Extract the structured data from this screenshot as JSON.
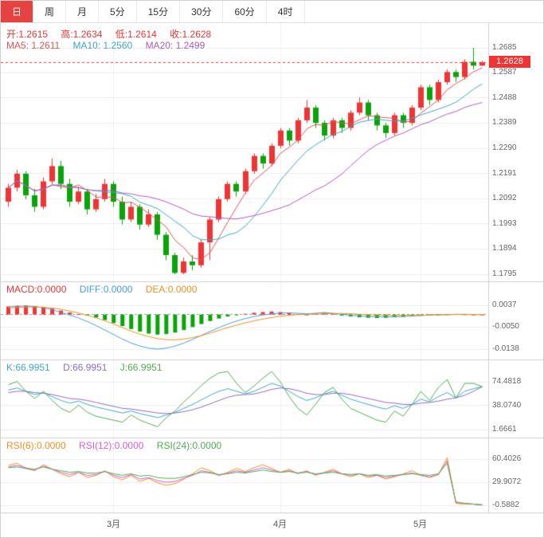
{
  "toolbar": {
    "tabs": [
      {
        "label": "日",
        "active": true
      },
      {
        "label": "周",
        "active": false
      },
      {
        "label": "月",
        "active": false
      },
      {
        "label": "5分",
        "active": false
      },
      {
        "label": "15分",
        "active": false
      },
      {
        "label": "30分",
        "active": false
      },
      {
        "label": "60分",
        "active": false
      },
      {
        "label": "4时",
        "active": false
      }
    ]
  },
  "legend": {
    "ohlc": {
      "open": "开:1.2615",
      "high": "高:1.2634",
      "low": "低:1.2614",
      "close": "收:1.2628"
    },
    "ma": [
      {
        "label": "MA5: 1.2611"
      },
      {
        "label": "MA10: 1.2560"
      },
      {
        "label": "MA20: 1.2499"
      }
    ],
    "macd": [
      {
        "label": "MACD:0.0000"
      },
      {
        "label": "DIFF:0.0000"
      },
      {
        "label": "DEA:0.0000"
      }
    ],
    "kdj": [
      {
        "label": "K:66.9951"
      },
      {
        "label": "D:66.9951"
      },
      {
        "label": "J:66.9951"
      }
    ],
    "rsi": [
      {
        "label": "RSI(6):0.0000"
      },
      {
        "label": "RSI(12):0.0000"
      },
      {
        "label": "RSI(24):0.0000"
      }
    ]
  },
  "axes": {
    "main_y": [
      "1.2685",
      "1.2587",
      "1.2488",
      "1.2389",
      "1.2290",
      "1.2191",
      "1.2092",
      "1.1993",
      "1.1894",
      "1.1795"
    ],
    "macd_y": [
      "0.0037",
      "-0.0050",
      "-0.0138"
    ],
    "kdj_y": [
      "74.4818",
      "38.0740",
      "1.6661"
    ],
    "rsi_y": [
      "60.4026",
      "29.9072",
      "-0.5882"
    ],
    "x": [
      "3月",
      "4月",
      "5月"
    ]
  },
  "price_badge": "1.2628",
  "colors": {
    "up": "#f03434",
    "down": "#08a408",
    "ma5": "#e05555",
    "ma10": "#3fa7c9",
    "ma20": "#b35abf",
    "diff": "#4a9fd8",
    "dea": "#f0921e",
    "k": "#3fa7c9",
    "d": "#8e6bc8",
    "j": "#4fae4f",
    "rsi6": "#f0921e",
    "rsi12": "#d45fd4",
    "rsi24": "#4fae4f",
    "grid": "#ececec",
    "zero_line": "#999999",
    "badge_bg": "#f03434",
    "tab_active_bg": "#e64340"
  },
  "chart_data": {
    "type": "candlestick",
    "title": "",
    "x_labels": [
      "3月",
      "4月",
      "5月"
    ],
    "month_tick_indices": [
      12,
      31,
      47
    ],
    "y_ticks_price": [
      1.2685,
      1.2587,
      1.2488,
      1.2389,
      1.229,
      1.2191,
      1.2092,
      1.1993,
      1.1894,
      1.1795
    ],
    "current_price": 1.2628,
    "ohlc_last": {
      "open": 1.2615,
      "high": 1.2634,
      "low": 1.2614,
      "close": 1.2628
    },
    "ma": {
      "windows": [
        5,
        10,
        20
      ],
      "MA5": 1.2611,
      "MA10": 1.256,
      "MA20": 1.2499
    },
    "candles": [
      [
        1.208,
        1.215,
        1.206,
        1.2135
      ],
      [
        1.2135,
        1.2205,
        1.212,
        1.219
      ],
      [
        1.219,
        1.22,
        1.209,
        1.2105
      ],
      [
        1.2105,
        1.213,
        1.204,
        1.206
      ],
      [
        1.206,
        1.2175,
        1.205,
        1.216
      ],
      [
        1.216,
        1.225,
        1.215,
        1.222
      ],
      [
        1.222,
        1.224,
        1.213,
        1.215
      ],
      [
        1.215,
        1.217,
        1.206,
        1.208
      ],
      [
        1.208,
        1.214,
        1.207,
        1.212
      ],
      [
        1.212,
        1.213,
        1.203,
        1.205
      ],
      [
        1.205,
        1.211,
        1.204,
        1.209
      ],
      [
        1.209,
        1.217,
        1.208,
        1.215
      ],
      [
        1.215,
        1.216,
        1.206,
        1.208
      ],
      [
        1.208,
        1.21,
        1.199,
        1.201
      ],
      [
        1.201,
        1.208,
        1.2,
        1.206
      ],
      [
        1.206,
        1.207,
        1.197,
        1.199
      ],
      [
        1.199,
        1.205,
        1.198,
        1.203
      ],
      [
        1.203,
        1.204,
        1.193,
        1.195
      ],
      [
        1.195,
        1.196,
        1.185,
        1.187
      ],
      [
        1.187,
        1.188,
        1.1795,
        1.18
      ],
      [
        1.18,
        1.186,
        1.1795,
        1.1845
      ],
      [
        1.1845,
        1.187,
        1.181,
        1.183
      ],
      [
        1.183,
        1.193,
        1.182,
        1.192
      ],
      [
        1.192,
        1.202,
        1.185,
        1.201
      ],
      [
        1.201,
        1.21,
        1.2,
        1.209
      ],
      [
        1.209,
        1.216,
        1.208,
        1.215
      ],
      [
        1.215,
        1.216,
        1.21,
        1.212
      ],
      [
        1.212,
        1.221,
        1.211,
        1.22
      ],
      [
        1.22,
        1.227,
        1.219,
        1.226
      ],
      [
        1.226,
        1.227,
        1.221,
        1.223
      ],
      [
        1.223,
        1.231,
        1.222,
        1.23
      ],
      [
        1.23,
        1.237,
        1.229,
        1.236
      ],
      [
        1.236,
        1.237,
        1.23,
        1.232
      ],
      [
        1.232,
        1.241,
        1.231,
        1.24
      ],
      [
        1.24,
        1.248,
        1.239,
        1.245
      ],
      [
        1.245,
        1.246,
        1.237,
        1.239
      ],
      [
        1.239,
        1.24,
        1.232,
        1.234
      ],
      [
        1.234,
        1.241,
        1.233,
        1.24
      ],
      [
        1.24,
        1.241,
        1.235,
        1.237
      ],
      [
        1.237,
        1.244,
        1.236,
        1.243
      ],
      [
        1.243,
        1.249,
        1.242,
        1.247
      ],
      [
        1.247,
        1.248,
        1.24,
        1.242
      ],
      [
        1.242,
        1.243,
        1.236,
        1.238
      ],
      [
        1.238,
        1.239,
        1.233,
        1.235
      ],
      [
        1.235,
        1.243,
        1.234,
        1.242
      ],
      [
        1.242,
        1.243,
        1.237,
        1.239
      ],
      [
        1.239,
        1.246,
        1.238,
        1.245
      ],
      [
        1.245,
        1.254,
        1.244,
        1.253
      ],
      [
        1.253,
        1.254,
        1.246,
        1.248
      ],
      [
        1.248,
        1.256,
        1.247,
        1.255
      ],
      [
        1.255,
        1.26,
        1.254,
        1.259
      ],
      [
        1.259,
        1.26,
        1.255,
        1.257
      ],
      [
        1.257,
        1.264,
        1.256,
        1.263
      ],
      [
        1.263,
        1.2685,
        1.26,
        1.2615
      ],
      [
        1.2615,
        1.2634,
        1.2614,
        1.2628
      ]
    ],
    "macd": {
      "last": {
        "MACD": 0.0,
        "DIFF": 0.0,
        "DEA": 0.0
      },
      "y_ticks": [
        0.0037,
        -0.005,
        -0.0138
      ],
      "hist": [
        0.0032,
        0.0035,
        0.0036,
        0.0034,
        0.003,
        0.0024,
        0.0016,
        0.0008,
        0.0002,
        -0.0004,
        -0.0012,
        -0.0022,
        -0.0034,
        -0.0046,
        -0.0058,
        -0.0068,
        -0.0076,
        -0.008,
        -0.0078,
        -0.0072,
        -0.0062,
        -0.005,
        -0.0038,
        -0.0026,
        -0.0016,
        -0.0008,
        -0.0002,
        0.0003,
        0.0007,
        0.001,
        0.0012,
        0.001,
        0.0006,
        0.0002,
        -0.0002,
        0.0004,
        0.0007,
        0.0003,
        -0.0004,
        -0.0008,
        -0.0011,
        -0.0013,
        -0.0014,
        -0.0013,
        -0.0011,
        -0.0009,
        -0.0007,
        -0.0005,
        -0.0003,
        -0.0001,
        0.0001,
        0.0002,
        0.0001,
        0.0,
        0.0
      ],
      "diff": [
        0.003,
        0.0033,
        0.0034,
        0.0032,
        0.0027,
        0.0019,
        0.0009,
        -0.0002,
        -0.0014,
        -0.0028,
        -0.0044,
        -0.0062,
        -0.008,
        -0.0098,
        -0.0114,
        -0.0126,
        -0.0134,
        -0.0138,
        -0.0134,
        -0.0126,
        -0.0114,
        -0.0099,
        -0.0083,
        -0.0067,
        -0.0052,
        -0.0038,
        -0.0026,
        -0.0016,
        -0.0008,
        -0.0002,
        0.0003,
        0.0006,
        0.0007,
        0.0005,
        0.0003,
        0.0005,
        0.0008,
        0.0005,
        0.0001,
        -0.0003,
        -0.0006,
        -0.0008,
        -0.0009,
        -0.001,
        -0.0009,
        -0.0008,
        -0.0006,
        -0.0004,
        -0.0002,
        -0.0001,
        0.0,
        0.0001,
        0.0001,
        0.0,
        0.0
      ],
      "dea": [
        0.0026,
        0.0028,
        0.003,
        0.003,
        0.0029,
        0.0026,
        0.0021,
        0.0014,
        0.0006,
        -0.0003,
        -0.0013,
        -0.0025,
        -0.0038,
        -0.0052,
        -0.0066,
        -0.0078,
        -0.0088,
        -0.0096,
        -0.01,
        -0.0101,
        -0.0098,
        -0.0092,
        -0.0084,
        -0.0074,
        -0.0063,
        -0.0052,
        -0.0042,
        -0.0033,
        -0.0025,
        -0.0018,
        -0.0012,
        -0.0007,
        -0.0003,
        0.0,
        0.0001,
        0.0002,
        0.0003,
        0.0004,
        0.0004,
        0.0003,
        0.0001,
        -0.0001,
        -0.0002,
        -0.0003,
        -0.0004,
        -0.0004,
        -0.0003,
        -0.0003,
        -0.0002,
        -0.0001,
        -0.0001,
        0.0,
        0.0,
        0.0,
        0.0
      ]
    },
    "kdj": {
      "last": {
        "K": 66.9951,
        "D": 66.9951,
        "J": 66.9951
      },
      "y_ticks": [
        74.4818,
        38.074,
        1.6661
      ],
      "k": [
        62,
        65,
        60,
        55,
        58,
        52,
        46,
        42,
        45,
        40,
        36,
        33,
        30,
        27,
        30,
        26,
        23,
        20,
        24,
        28,
        34,
        40,
        47,
        54,
        60,
        64,
        60,
        56,
        60,
        66,
        72,
        68,
        60,
        52,
        46,
        50,
        56,
        60,
        54,
        48,
        44,
        40,
        36,
        33,
        38,
        34,
        40,
        48,
        44,
        52,
        58,
        50,
        60,
        64,
        67
      ],
      "d": [
        58,
        60,
        60,
        58,
        57,
        55,
        52,
        49,
        48,
        46,
        43,
        40,
        37,
        34,
        33,
        31,
        29,
        27,
        26,
        27,
        29,
        32,
        36,
        41,
        46,
        51,
        54,
        55,
        56,
        59,
        63,
        65,
        64,
        61,
        57,
        55,
        55,
        57,
        57,
        55,
        52,
        49,
        46,
        43,
        42,
        40,
        40,
        42,
        43,
        45,
        48,
        50,
        54,
        60,
        67
      ]
    },
    "rsi": {
      "last": {
        "RSI6": 0.0,
        "RSI12": 0.0,
        "RSI24": 0.0
      },
      "y_ticks": [
        60.4026,
        29.9072,
        -0.5882
      ],
      "rsi6": [
        52,
        55,
        48,
        45,
        53,
        47,
        41,
        37,
        43,
        36,
        39,
        45,
        37,
        33,
        39,
        31,
        35,
        29,
        26,
        28,
        34,
        41,
        49,
        45,
        39,
        43,
        48,
        44,
        49,
        53,
        48,
        43,
        47,
        41,
        45,
        39,
        43,
        47,
        41,
        37,
        41,
        36,
        39,
        34,
        37,
        41,
        45,
        39,
        36,
        40,
        62,
        2,
        1,
        1,
        0
      ],
      "rsi12": [
        50,
        52,
        49,
        46,
        51,
        47,
        43,
        40,
        43,
        39,
        40,
        44,
        39,
        36,
        40,
        34,
        36,
        32,
        30,
        31,
        35,
        39,
        45,
        43,
        39,
        42,
        45,
        43,
        46,
        49,
        46,
        43,
        45,
        42,
        44,
        40,
        42,
        45,
        41,
        39,
        41,
        38,
        39,
        36,
        38,
        40,
        42,
        39,
        37,
        40,
        58,
        3,
        2,
        1,
        0
      ],
      "rsi24": [
        49,
        50,
        48,
        47,
        50,
        47,
        45,
        43,
        44,
        42,
        42,
        44,
        41,
        39,
        41,
        38,
        39,
        36,
        35,
        35,
        37,
        40,
        43,
        42,
        40,
        41,
        43,
        42,
        44,
        46,
        44,
        43,
        44,
        42,
        43,
        41,
        42,
        43,
        41,
        40,
        41,
        39,
        40,
        38,
        39,
        40,
        41,
        40,
        39,
        41,
        55,
        4,
        2,
        1,
        0
      ]
    }
  }
}
